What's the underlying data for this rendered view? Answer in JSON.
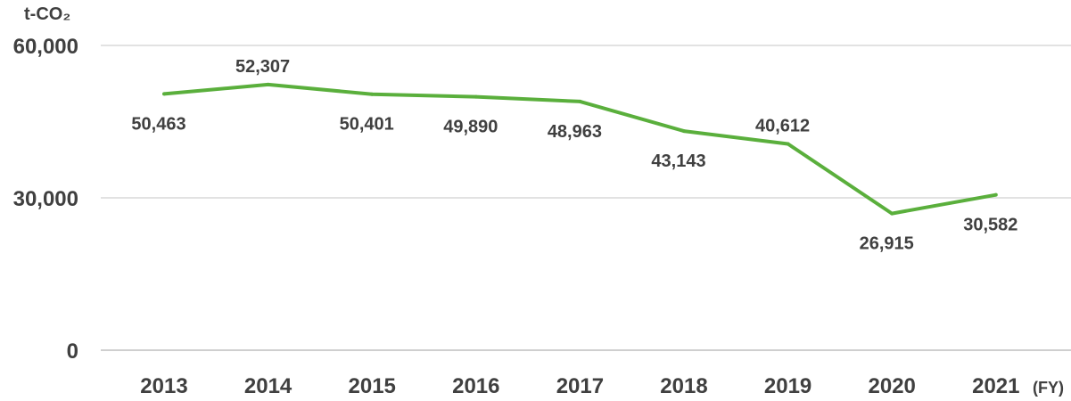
{
  "chart_data": {
    "type": "line",
    "title": "",
    "ylabel": "t-CO₂",
    "xlabel": "(FY)",
    "categories": [
      "2013",
      "2014",
      "2015",
      "2016",
      "2017",
      "2018",
      "2019",
      "2020",
      "2021"
    ],
    "series": [
      {
        "values": [
          50463,
          52307,
          50401,
          49890,
          48963,
          43143,
          40612,
          26915,
          30582
        ],
        "labels": [
          "50,463",
          "52,307",
          "50,401",
          "49,890",
          "48,963",
          "43,143",
          "40,612",
          "26,915",
          "30,582"
        ],
        "label_positions": [
          "below",
          "above",
          "below",
          "below",
          "below",
          "below",
          "above",
          "below",
          "below"
        ]
      }
    ],
    "ylim": [
      0,
      60000
    ],
    "yticks": [
      0,
      30000,
      60000
    ],
    "ytick_labels": [
      "0",
      "30,000",
      "60,000"
    ],
    "grid": true,
    "colors": {
      "line": "#5aaf3c",
      "grid": "#d9d9d9",
      "text": "#404040"
    }
  }
}
